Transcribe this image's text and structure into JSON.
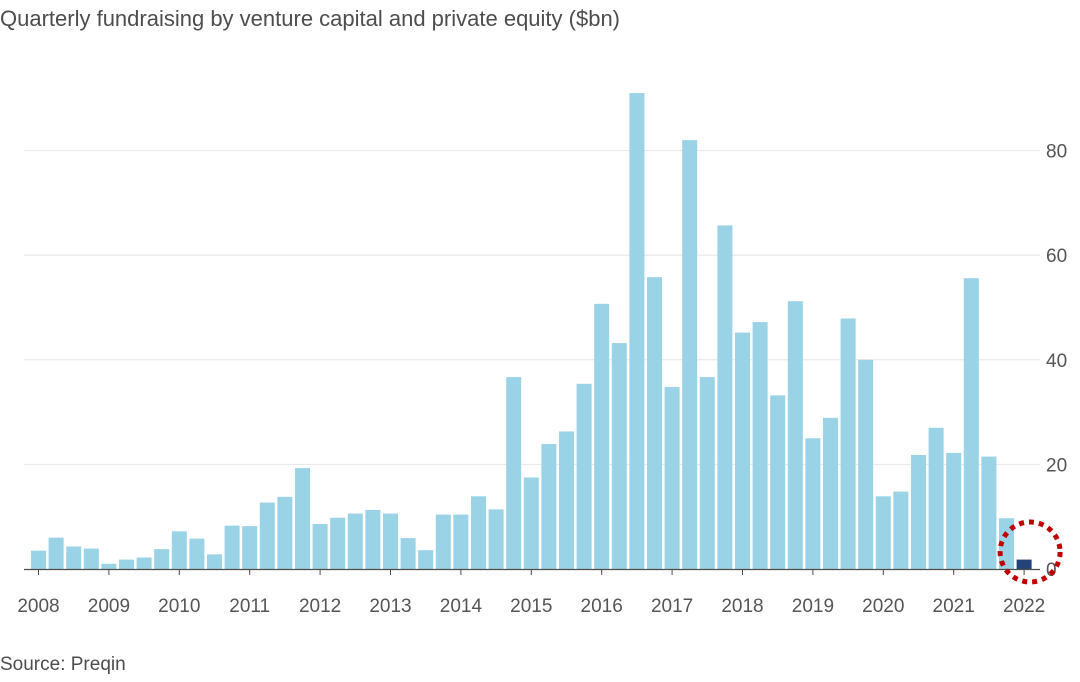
{
  "chart_data": {
    "type": "bar",
    "title": "Quarterly fundraising by venture capital and private equity ($bn)",
    "source": "Source: Preqin",
    "xlabel": "",
    "ylabel": "",
    "ylim": [
      0,
      90
    ],
    "yticks": [
      0,
      20,
      40,
      60,
      80
    ],
    "y_axis_position": "right",
    "grid": true,
    "year_labels": [
      "2008",
      "2009",
      "2010",
      "2011",
      "2012",
      "2013",
      "2014",
      "2015",
      "2016",
      "2017",
      "2018",
      "2019",
      "2020",
      "2021",
      "2022"
    ],
    "categories": [
      "2008 Q1",
      "2008 Q2",
      "2008 Q3",
      "2008 Q4",
      "2009 Q1",
      "2009 Q2",
      "2009 Q3",
      "2009 Q4",
      "2010 Q1",
      "2010 Q2",
      "2010 Q3",
      "2010 Q4",
      "2011 Q1",
      "2011 Q2",
      "2011 Q3",
      "2011 Q4",
      "2012 Q1",
      "2012 Q2",
      "2012 Q3",
      "2012 Q4",
      "2013 Q1",
      "2013 Q2",
      "2013 Q3",
      "2013 Q4",
      "2014 Q1",
      "2014 Q2",
      "2014 Q3",
      "2014 Q4",
      "2015 Q1",
      "2015 Q2",
      "2015 Q3",
      "2015 Q4",
      "2016 Q1",
      "2016 Q2",
      "2016 Q3",
      "2016 Q4",
      "2017 Q1",
      "2017 Q2",
      "2017 Q3",
      "2017 Q4",
      "2018 Q1",
      "2018 Q2",
      "2018 Q3",
      "2018 Q4",
      "2019 Q1",
      "2019 Q2",
      "2019 Q3",
      "2019 Q4",
      "2020 Q1",
      "2020 Q2",
      "2020 Q3",
      "2020 Q4",
      "2021 Q1",
      "2021 Q2",
      "2021 Q3",
      "2021 Q4",
      "2022 Q1"
    ],
    "values": [
      3.5,
      6,
      4.3,
      3.9,
      1,
      1.8,
      2.2,
      3.8,
      7.2,
      5.8,
      2.8,
      8.3,
      8.2,
      12.7,
      13.8,
      19.3,
      8.6,
      9.8,
      10.6,
      11.3,
      10.6,
      5.9,
      3.6,
      10.4,
      10.4,
      13.9,
      11.4,
      36.7,
      17.5,
      23.9,
      26.3,
      35.4,
      50.7,
      43.2,
      91,
      55.8,
      34.8,
      82,
      36.7,
      65.7,
      45.2,
      47.2,
      33.2,
      51.2,
      25,
      28.9,
      47.9,
      40,
      13.9,
      14.8,
      21.8,
      27,
      22.2,
      55.6,
      21.5,
      9.7,
      1.8
    ],
    "bar_color": "#9ad3e6",
    "highlight_index": 56,
    "highlight_color": "#22447a",
    "annotation": {
      "type": "dotted-circle",
      "target": "2022 Q1",
      "color": "#c00000"
    },
    "gridline_color": "#e6e6e6",
    "baseline_color": "#4d4d4d"
  }
}
